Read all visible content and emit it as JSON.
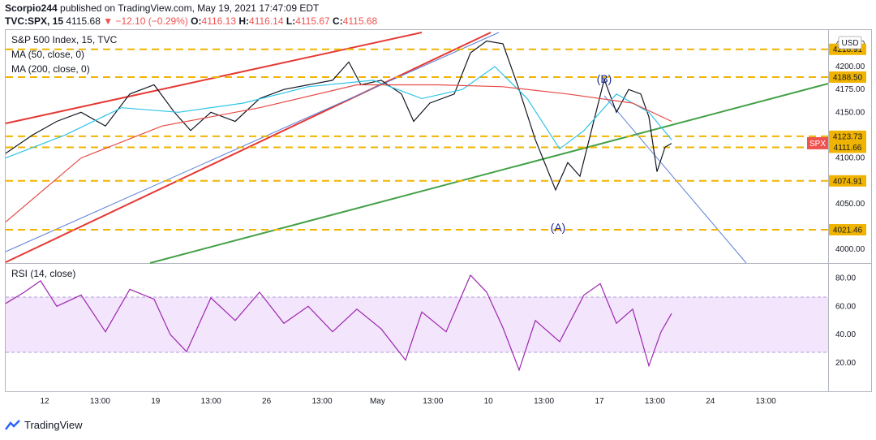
{
  "header": {
    "publisher": "Scorpio244",
    "published_text": "published on TradingView.com, May 19, 2021 17:47:09 EDT",
    "symbol": "TVC:SPX, 15",
    "last": "4115.68",
    "change": "▼ −12.10 (−0.29%)",
    "o_label": "O:",
    "o_val": "4116.13",
    "h_label": "H:",
    "h_val": "4116.14",
    "l_label": "L:",
    "l_val": "4115.67",
    "c_label": "C:",
    "c_val": "4115.68"
  },
  "legend": {
    "title": "S&P 500 Index, 15, TVC",
    "ma50": "MA (50, close, 0)",
    "ma200": "MA (200, close, 0)",
    "rsi": "RSI (14, close)"
  },
  "currency": "USD",
  "footer": {
    "brand": "TradingView"
  },
  "chart_data": [
    {
      "type": "line",
      "title": "S&P 500 Index, 15, TVC",
      "series": [
        {
          "name": "SPX",
          "color": "#131722"
        }
      ],
      "y_ticks": [
        "4225.00",
        "4200.00",
        "4175.00",
        "4150.00",
        "4100.00",
        "4050.00",
        "4000.00"
      ],
      "ylim": [
        3985,
        4240
      ],
      "horizontal_levels": [
        {
          "value": 4218.91,
          "label": "4218.91",
          "color": "#f0b400"
        },
        {
          "value": 4188.5,
          "label": "4188.50",
          "color": "#f0b400"
        },
        {
          "value": 4123.73,
          "label": "4123.73",
          "color": "#f0b400"
        },
        {
          "value": 4111.66,
          "label": "4111.66",
          "color": "#f0b400"
        },
        {
          "value": 4074.91,
          "label": "4074.91",
          "color": "#f0b400"
        },
        {
          "value": 4021.46,
          "label": "4021.46",
          "color": "#f0b400"
        }
      ],
      "price_tag": {
        "value": 4115.68,
        "label": "SPX",
        "color": "#ef5350"
      },
      "wave_labels": [
        "(A)",
        "(B)"
      ],
      "moving_averages": [
        {
          "name": "MA (50, close, 0)",
          "color": "#2ec4e6"
        },
        {
          "name": "MA (200, close, 0)",
          "color": "#e64a45"
        }
      ]
    },
    {
      "type": "line",
      "title": "RSI (14, close)",
      "series": [
        {
          "name": "RSI",
          "color": "#9c27b0"
        }
      ],
      "y_ticks": [
        "80.00",
        "60.00",
        "40.00",
        "20.00"
      ],
      "ylim": [
        0,
        90
      ],
      "band": [
        30,
        70
      ]
    }
  ],
  "x_ticks": [
    "12",
    "13:00",
    "19",
    "13:00",
    "26",
    "13:00",
    "May",
    "13:00",
    "10",
    "13:00",
    "17",
    "13:00",
    "24",
    "13:00"
  ],
  "colors": {
    "accent": "#2962ff",
    "trend_red": "#e53935",
    "trend_green": "#43a047",
    "level": "#f0b400",
    "rsi": "#9c27b0",
    "rsi_band": "#f3e5fb"
  }
}
